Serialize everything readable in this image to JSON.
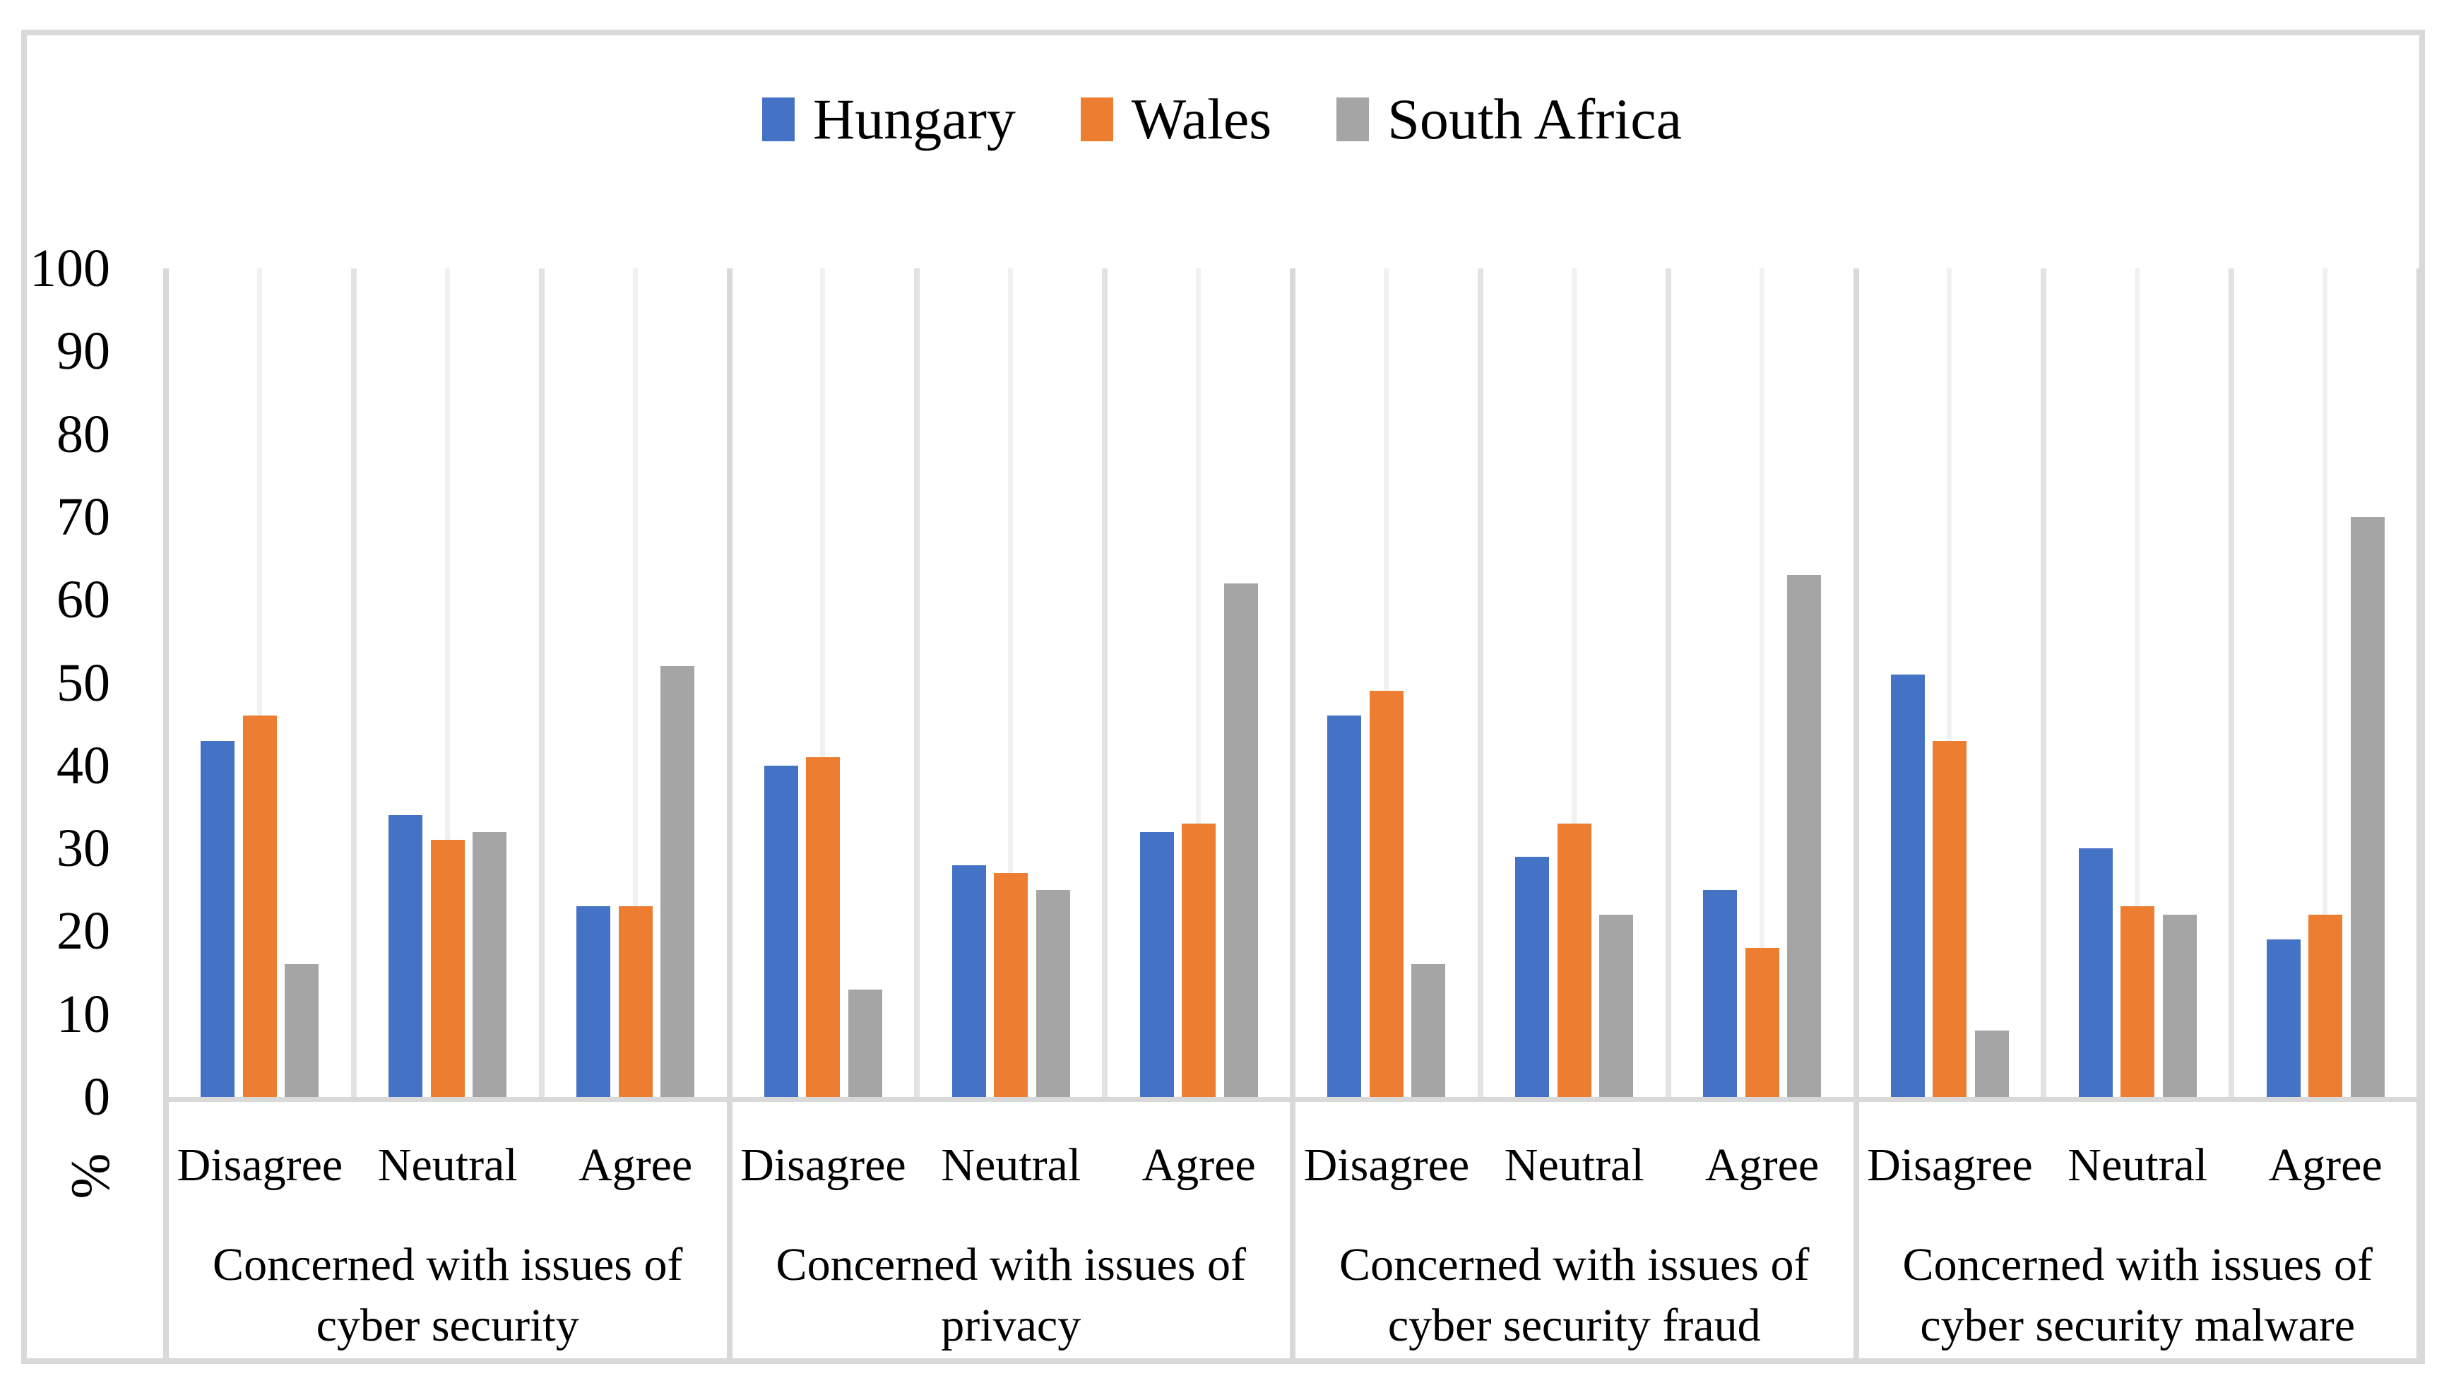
{
  "figure": {
    "background": "#FFFFFF",
    "border_color": "#D9D9D9"
  },
  "legend": {
    "position": "top-center",
    "items": [
      {
        "label": "Hungary",
        "color": "#4472C4"
      },
      {
        "label": "Wales",
        "color": "#ED7D31"
      },
      {
        "label": "South Africa",
        "color": "#A5A5A5"
      }
    ]
  },
  "chart_data": {
    "type": "bar",
    "title": "",
    "xlabel": "",
    "ylabel": "%",
    "ylim": [
      0,
      100
    ],
    "ytick_step": 10,
    "yticks": [
      100,
      90,
      80,
      70,
      60,
      50,
      40,
      30,
      20,
      10,
      0
    ],
    "grid": "vertical-only",
    "legend_position": "top-center",
    "series_names": [
      "Hungary",
      "Wales",
      "South Africa"
    ],
    "series_colors": [
      "#4472C4",
      "#ED7D31",
      "#A5A5A5"
    ],
    "category_labels": [
      "Disagree",
      "Neutral",
      "Agree"
    ],
    "groups": [
      {
        "title": "Concerned with issues of cyber security",
        "title_lines": [
          "Concerned with issues of",
          "cyber security"
        ],
        "categories": [
          "Disagree",
          "Neutral",
          "Agree"
        ],
        "series": [
          {
            "name": "Hungary",
            "values": [
              43,
              34,
              23
            ]
          },
          {
            "name": "Wales",
            "values": [
              46,
              31,
              23
            ]
          },
          {
            "name": "South Africa",
            "values": [
              16,
              32,
              52
            ]
          }
        ]
      },
      {
        "title": "Concerned with issues of privacy",
        "title_lines": [
          "Concerned with issues of",
          "privacy"
        ],
        "categories": [
          "Disagree",
          "Neutral",
          "Agree"
        ],
        "series": [
          {
            "name": "Hungary",
            "values": [
              40,
              28,
              32
            ]
          },
          {
            "name": "Wales",
            "values": [
              41,
              27,
              33
            ]
          },
          {
            "name": "South Africa",
            "values": [
              13,
              25,
              62
            ]
          }
        ]
      },
      {
        "title": "Concerned with issues of cyber security fraud",
        "title_lines": [
          "Concerned with issues of",
          "cyber security fraud"
        ],
        "categories": [
          "Disagree",
          "Neutral",
          "Agree"
        ],
        "series": [
          {
            "name": "Hungary",
            "values": [
              46,
              29,
              25
            ]
          },
          {
            "name": "Wales",
            "values": [
              49,
              33,
              18
            ]
          },
          {
            "name": "South Africa",
            "values": [
              16,
              22,
              63
            ]
          }
        ]
      },
      {
        "title": "Concerned with issues of cyber security malware",
        "title_lines": [
          "Concerned with issues of",
          "cyber security malware"
        ],
        "categories": [
          "Disagree",
          "Neutral",
          "Agree"
        ],
        "series": [
          {
            "name": "Hungary",
            "values": [
              51,
              30,
              19
            ]
          },
          {
            "name": "Wales",
            "values": [
              43,
              23,
              22
            ]
          },
          {
            "name": "South Africa",
            "values": [
              8,
              22,
              70
            ]
          }
        ]
      }
    ]
  }
}
